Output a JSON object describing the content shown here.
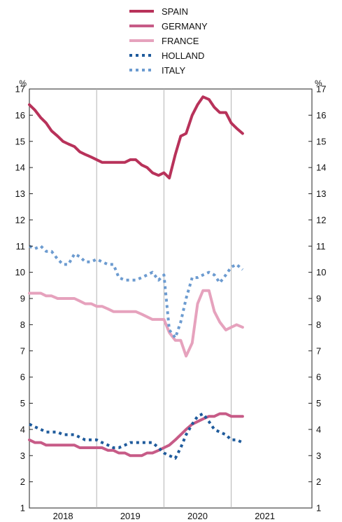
{
  "chart_data": {
    "type": "line",
    "title": "",
    "y_unit_left": "%",
    "y_unit_right": "%",
    "ylim": [
      1,
      17
    ],
    "yticks": [
      "1",
      "2",
      "3",
      "4",
      "5",
      "6",
      "7",
      "8",
      "9",
      "10",
      "11",
      "12",
      "13",
      "14",
      "15",
      "16",
      "17"
    ],
    "x_range": [
      2017.5,
      2021.7
    ],
    "x_year_labels": [
      {
        "label": "2018",
        "x": 2018.0
      },
      {
        "label": "2019",
        "x": 2019.0
      },
      {
        "label": "2020",
        "x": 2020.0
      },
      {
        "label": "2021",
        "x": 2021.0
      }
    ],
    "x_gridlines": [
      2018.5,
      2019.5,
      2020.5
    ],
    "grid": "vertical-year-dividers",
    "legend_position": "top-center",
    "series": [
      {
        "name": "SPAIN",
        "color": "#b8325a",
        "style": "solid",
        "points": [
          [
            2017.5,
            16.4
          ],
          [
            2017.58,
            16.2
          ],
          [
            2017.67,
            15.9
          ],
          [
            2017.75,
            15.7
          ],
          [
            2017.83,
            15.4
          ],
          [
            2017.92,
            15.2
          ],
          [
            2018.0,
            15.0
          ],
          [
            2018.08,
            14.9
          ],
          [
            2018.17,
            14.8
          ],
          [
            2018.25,
            14.6
          ],
          [
            2018.33,
            14.5
          ],
          [
            2018.42,
            14.4
          ],
          [
            2018.5,
            14.3
          ],
          [
            2018.58,
            14.2
          ],
          [
            2018.67,
            14.2
          ],
          [
            2018.75,
            14.2
          ],
          [
            2018.83,
            14.2
          ],
          [
            2018.92,
            14.2
          ],
          [
            2019.0,
            14.3
          ],
          [
            2019.08,
            14.3
          ],
          [
            2019.17,
            14.1
          ],
          [
            2019.25,
            14.0
          ],
          [
            2019.33,
            13.8
          ],
          [
            2019.42,
            13.7
          ],
          [
            2019.5,
            13.8
          ],
          [
            2019.58,
            13.6
          ],
          [
            2019.67,
            14.5
          ],
          [
            2019.75,
            15.2
          ],
          [
            2019.83,
            15.3
          ],
          [
            2019.92,
            16.0
          ],
          [
            2020.0,
            16.4
          ],
          [
            2020.08,
            16.7
          ],
          [
            2020.17,
            16.6
          ],
          [
            2020.25,
            16.3
          ],
          [
            2020.33,
            16.1
          ],
          [
            2020.42,
            16.1
          ],
          [
            2020.5,
            15.7
          ],
          [
            2020.58,
            15.5
          ],
          [
            2020.67,
            15.3
          ]
        ]
      },
      {
        "name": "GERMANY",
        "color": "#c75b87",
        "style": "solid",
        "points": [
          [
            2017.5,
            3.6
          ],
          [
            2017.58,
            3.5
          ],
          [
            2017.67,
            3.5
          ],
          [
            2017.75,
            3.4
          ],
          [
            2017.83,
            3.4
          ],
          [
            2017.92,
            3.4
          ],
          [
            2018.0,
            3.4
          ],
          [
            2018.08,
            3.4
          ],
          [
            2018.17,
            3.4
          ],
          [
            2018.25,
            3.3
          ],
          [
            2018.33,
            3.3
          ],
          [
            2018.42,
            3.3
          ],
          [
            2018.5,
            3.3
          ],
          [
            2018.58,
            3.3
          ],
          [
            2018.67,
            3.2
          ],
          [
            2018.75,
            3.2
          ],
          [
            2018.83,
            3.1
          ],
          [
            2018.92,
            3.1
          ],
          [
            2019.0,
            3.0
          ],
          [
            2019.08,
            3.0
          ],
          [
            2019.17,
            3.0
          ],
          [
            2019.25,
            3.1
          ],
          [
            2019.33,
            3.1
          ],
          [
            2019.42,
            3.2
          ],
          [
            2019.5,
            3.3
          ],
          [
            2019.58,
            3.4
          ],
          [
            2019.67,
            3.6
          ],
          [
            2019.75,
            3.8
          ],
          [
            2019.83,
            4.0
          ],
          [
            2019.92,
            4.2
          ],
          [
            2020.0,
            4.3
          ],
          [
            2020.08,
            4.4
          ],
          [
            2020.17,
            4.5
          ],
          [
            2020.25,
            4.5
          ],
          [
            2020.33,
            4.6
          ],
          [
            2020.42,
            4.6
          ],
          [
            2020.5,
            4.5
          ],
          [
            2020.58,
            4.5
          ],
          [
            2020.67,
            4.5
          ]
        ]
      },
      {
        "name": "FRANCE",
        "color": "#e6a2bd",
        "style": "solid",
        "points": [
          [
            2017.5,
            9.2
          ],
          [
            2017.58,
            9.2
          ],
          [
            2017.67,
            9.2
          ],
          [
            2017.75,
            9.1
          ],
          [
            2017.83,
            9.1
          ],
          [
            2017.92,
            9.0
          ],
          [
            2018.0,
            9.0
          ],
          [
            2018.08,
            9.0
          ],
          [
            2018.17,
            9.0
          ],
          [
            2018.25,
            8.9
          ],
          [
            2018.33,
            8.8
          ],
          [
            2018.42,
            8.8
          ],
          [
            2018.5,
            8.7
          ],
          [
            2018.58,
            8.7
          ],
          [
            2018.67,
            8.6
          ],
          [
            2018.75,
            8.5
          ],
          [
            2018.83,
            8.5
          ],
          [
            2018.92,
            8.5
          ],
          [
            2019.0,
            8.5
          ],
          [
            2019.08,
            8.5
          ],
          [
            2019.17,
            8.4
          ],
          [
            2019.25,
            8.3
          ],
          [
            2019.33,
            8.2
          ],
          [
            2019.42,
            8.2
          ],
          [
            2019.5,
            8.2
          ],
          [
            2019.58,
            7.7
          ],
          [
            2019.67,
            7.4
          ],
          [
            2019.75,
            7.4
          ],
          [
            2019.83,
            6.8
          ],
          [
            2019.92,
            7.3
          ],
          [
            2020.0,
            8.8
          ],
          [
            2020.08,
            9.3
          ],
          [
            2020.17,
            9.3
          ],
          [
            2020.25,
            8.5
          ],
          [
            2020.33,
            8.1
          ],
          [
            2020.42,
            7.8
          ],
          [
            2020.5,
            7.9
          ],
          [
            2020.58,
            8.0
          ],
          [
            2020.67,
            7.9
          ]
        ]
      },
      {
        "name": "HOLLAND",
        "color": "#1f5b9c",
        "style": "dotted",
        "points": [
          [
            2017.5,
            4.2
          ],
          [
            2017.58,
            4.1
          ],
          [
            2017.67,
            4.0
          ],
          [
            2017.75,
            3.9
          ],
          [
            2017.83,
            3.9
          ],
          [
            2017.92,
            3.9
          ],
          [
            2018.0,
            3.8
          ],
          [
            2018.08,
            3.8
          ],
          [
            2018.17,
            3.8
          ],
          [
            2018.25,
            3.7
          ],
          [
            2018.33,
            3.6
          ],
          [
            2018.42,
            3.6
          ],
          [
            2018.5,
            3.6
          ],
          [
            2018.58,
            3.5
          ],
          [
            2018.67,
            3.4
          ],
          [
            2018.75,
            3.3
          ],
          [
            2018.83,
            3.3
          ],
          [
            2018.92,
            3.4
          ],
          [
            2019.0,
            3.5
          ],
          [
            2019.08,
            3.5
          ],
          [
            2019.17,
            3.5
          ],
          [
            2019.25,
            3.5
          ],
          [
            2019.33,
            3.5
          ],
          [
            2019.42,
            3.3
          ],
          [
            2019.5,
            3.1
          ],
          [
            2019.58,
            3.0
          ],
          [
            2019.67,
            2.9
          ],
          [
            2019.75,
            3.3
          ],
          [
            2019.83,
            3.8
          ],
          [
            2019.92,
            4.2
          ],
          [
            2020.0,
            4.5
          ],
          [
            2020.08,
            4.6
          ],
          [
            2020.17,
            4.3
          ],
          [
            2020.25,
            4.0
          ],
          [
            2020.33,
            3.9
          ],
          [
            2020.42,
            3.8
          ],
          [
            2020.5,
            3.6
          ],
          [
            2020.58,
            3.6
          ],
          [
            2020.67,
            3.5
          ]
        ]
      },
      {
        "name": "ITALY",
        "color": "#6c9bd0",
        "style": "dotted",
        "points": [
          [
            2017.5,
            11.0
          ],
          [
            2017.58,
            10.9
          ],
          [
            2017.67,
            11.0
          ],
          [
            2017.75,
            10.8
          ],
          [
            2017.83,
            10.8
          ],
          [
            2017.92,
            10.5
          ],
          [
            2018.0,
            10.3
          ],
          [
            2018.08,
            10.3
          ],
          [
            2018.17,
            10.7
          ],
          [
            2018.25,
            10.6
          ],
          [
            2018.33,
            10.4
          ],
          [
            2018.42,
            10.4
          ],
          [
            2018.5,
            10.5
          ],
          [
            2018.58,
            10.4
          ],
          [
            2018.67,
            10.3
          ],
          [
            2018.75,
            10.3
          ],
          [
            2018.83,
            9.8
          ],
          [
            2018.92,
            9.7
          ],
          [
            2019.0,
            9.7
          ],
          [
            2019.08,
            9.7
          ],
          [
            2019.17,
            9.8
          ],
          [
            2019.25,
            9.9
          ],
          [
            2019.33,
            10.0
          ],
          [
            2019.42,
            9.7
          ],
          [
            2019.5,
            9.9
          ],
          [
            2019.58,
            7.8
          ],
          [
            2019.67,
            7.5
          ],
          [
            2019.75,
            8.1
          ],
          [
            2019.83,
            9.0
          ],
          [
            2019.92,
            9.8
          ],
          [
            2020.0,
            9.8
          ],
          [
            2020.08,
            9.9
          ],
          [
            2020.17,
            10.0
          ],
          [
            2020.25,
            9.9
          ],
          [
            2020.33,
            9.6
          ],
          [
            2020.42,
            9.9
          ],
          [
            2020.5,
            10.2
          ],
          [
            2020.58,
            10.3
          ],
          [
            2020.67,
            10.1
          ]
        ]
      }
    ]
  }
}
